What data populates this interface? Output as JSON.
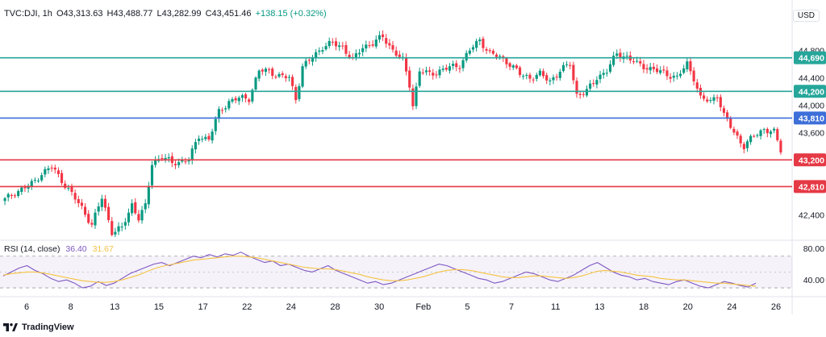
{
  "header": {
    "symbol": "TVC:DJI, 1h",
    "open": "O43,313.63",
    "high": "H43,488.77",
    "low": "L43,282.99",
    "close": "C43,451.46",
    "change": "+138.15 (+0.32%)"
  },
  "currency": "USD",
  "brand": "TradingView",
  "chart_data": [
    {
      "type": "candlestick",
      "title": "",
      "y_ticks": [
        42400,
        43600,
        44000,
        44400,
        44800
      ],
      "ylim": [
        42050,
        45180
      ],
      "horizontal_levels": [
        {
          "value": 44690,
          "label": "44,690",
          "color": "#26a69a"
        },
        {
          "value": 44200,
          "label": "44,200",
          "color": "#26a69a"
        },
        {
          "value": 43810,
          "label": "43,810",
          "color": "#3d6fd9"
        },
        {
          "value": 43200,
          "label": "43,200",
          "color": "#e53945"
        },
        {
          "value": 42810,
          "label": "42,810",
          "color": "#e53945"
        }
      ],
      "colors": {
        "up": "#089981",
        "down": "#f23645"
      },
      "x_tick_labels": [
        "6",
        "8",
        "13",
        "15",
        "17",
        "22",
        "24",
        "28",
        "30",
        "Feb",
        "5",
        "7",
        "11",
        "13",
        "18",
        "20",
        "24",
        "26"
      ],
      "close_path": [
        [
          0,
          42620
        ],
        [
          3,
          42720
        ],
        [
          8,
          42850
        ],
        [
          11,
          43000
        ],
        [
          14,
          43100
        ],
        [
          17,
          42900
        ],
        [
          20,
          42700
        ],
        [
          23,
          42500
        ],
        [
          26,
          42250
        ],
        [
          29,
          42650
        ],
        [
          32,
          42150
        ],
        [
          35,
          42200
        ],
        [
          38,
          42550
        ],
        [
          40,
          42350
        ],
        [
          42,
          42520
        ],
        [
          44,
          43150
        ],
        [
          47,
          43250
        ],
        [
          50,
          43150
        ],
        [
          53,
          43180
        ],
        [
          55,
          43200
        ],
        [
          58,
          43550
        ],
        [
          61,
          43500
        ],
        [
          64,
          43900
        ],
        [
          67,
          44050
        ],
        [
          70,
          44100
        ],
        [
          73,
          44100
        ],
        [
          76,
          44500
        ],
        [
          79,
          44500
        ],
        [
          82,
          44420
        ],
        [
          85,
          44400
        ],
        [
          87,
          44100
        ],
        [
          89,
          44550
        ],
        [
          92,
          44700
        ],
        [
          95,
          44850
        ],
        [
          98,
          44900
        ],
        [
          101,
          44850
        ],
        [
          104,
          44650
        ],
        [
          107,
          44850
        ],
        [
          110,
          44900
        ],
        [
          113,
          45000
        ],
        [
          116,
          44800
        ],
        [
          119,
          44650
        ],
        [
          121,
          44300
        ],
        [
          122,
          44000
        ],
        [
          124,
          44500
        ],
        [
          127,
          44450
        ],
        [
          130,
          44500
        ],
        [
          133,
          44550
        ],
        [
          136,
          44580
        ],
        [
          139,
          44800
        ],
        [
          142,
          44950
        ],
        [
          145,
          44750
        ],
        [
          148,
          44700
        ],
        [
          151,
          44600
        ],
        [
          154,
          44450
        ],
        [
          157,
          44400
        ],
        [
          160,
          44450
        ],
        [
          163,
          44350
        ],
        [
          166,
          44500
        ],
        [
          169,
          44600
        ],
        [
          171,
          44150
        ],
        [
          174,
          44200
        ],
        [
          177,
          44400
        ],
        [
          180,
          44500
        ],
        [
          183,
          44750
        ],
        [
          186,
          44700
        ],
        [
          189,
          44600
        ],
        [
          192,
          44550
        ],
        [
          195,
          44500
        ],
        [
          198,
          44450
        ],
        [
          201,
          44400
        ],
        [
          204,
          44600
        ],
        [
          206,
          44400
        ],
        [
          208,
          44100
        ],
        [
          211,
          44050
        ],
        [
          213,
          44150
        ],
        [
          215,
          43850
        ],
        [
          218,
          43600
        ],
        [
          221,
          43400
        ],
        [
          224,
          43550
        ],
        [
          227,
          43650
        ],
        [
          230,
          43600
        ],
        [
          232,
          43340
        ]
      ],
      "close_path_note": ""
    },
    {
      "type": "line",
      "title": "RSI (14, close)",
      "values_label": [
        "36.40",
        "31.67"
      ],
      "y_ticks": [
        40,
        80
      ],
      "ylim": [
        25,
        88
      ],
      "band": [
        30,
        70
      ],
      "series": [
        {
          "name": "RSI",
          "color": "#7e57c2",
          "values": [
            45,
            50,
            55,
            58,
            52,
            48,
            42,
            38,
            40,
            36,
            30,
            32,
            38,
            33,
            36,
            42,
            48,
            52,
            56,
            60,
            62,
            58,
            62,
            66,
            70,
            68,
            72,
            69,
            73,
            71,
            75,
            70,
            66,
            62,
            64,
            58,
            60,
            56,
            52,
            50,
            54,
            58,
            52,
            48,
            44,
            40,
            36,
            38,
            34,
            36,
            40,
            44,
            48,
            52,
            56,
            60,
            58,
            54,
            50,
            46,
            42,
            40,
            36,
            38,
            42,
            46,
            50,
            48,
            44,
            40,
            38,
            42,
            46,
            52,
            58,
            62,
            56,
            50,
            46,
            44,
            40,
            42,
            38,
            36,
            34,
            38,
            40,
            36,
            32,
            30,
            34,
            38,
            36,
            33,
            31,
            36
          ]
        },
        {
          "name": "MA",
          "color": "#f5c342",
          "values": [
            46,
            48,
            49,
            50,
            50,
            49,
            47,
            45,
            43,
            41,
            39,
            38,
            37,
            37,
            38,
            40,
            43,
            46,
            50,
            54,
            57,
            59,
            61,
            63,
            65,
            66,
            67,
            68,
            69,
            70,
            70,
            69,
            68,
            66,
            64,
            62,
            60,
            58,
            56,
            55,
            54,
            54,
            53,
            51,
            49,
            47,
            44,
            42,
            40,
            39,
            39,
            40,
            42,
            44,
            47,
            50,
            52,
            53,
            53,
            52,
            50,
            48,
            46,
            44,
            43,
            43,
            44,
            45,
            45,
            44,
            43,
            42,
            43,
            45,
            48,
            51,
            52,
            51,
            50,
            48,
            46,
            45,
            44,
            42,
            41,
            40,
            40,
            39,
            38,
            37,
            36,
            36,
            35,
            34,
            33,
            32
          ]
        }
      ]
    }
  ]
}
